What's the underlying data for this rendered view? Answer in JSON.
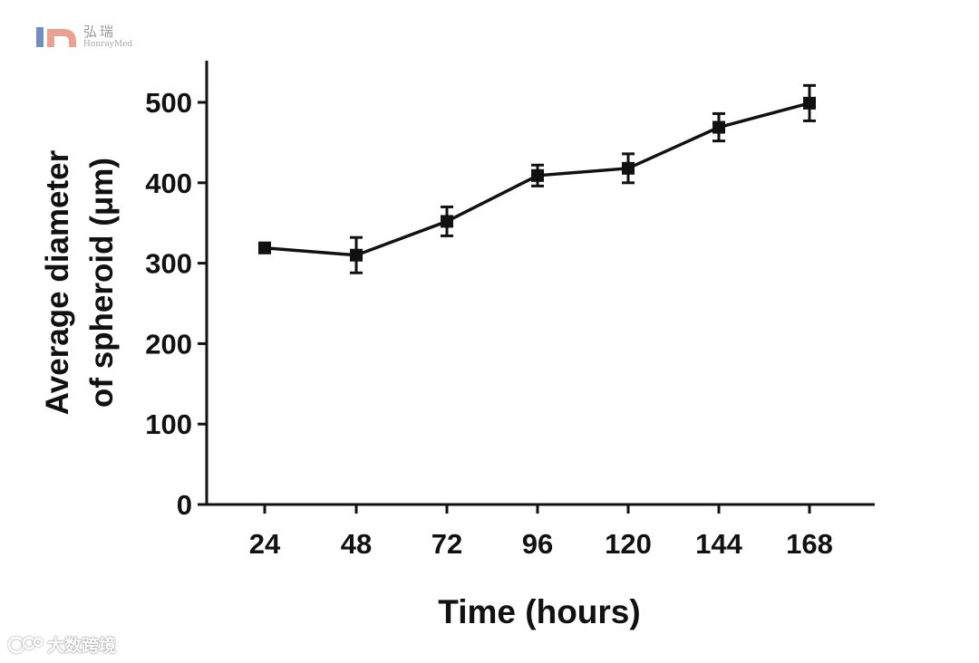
{
  "watermark_top": {
    "brand_cn": "弘瑞",
    "brand_en": "HonrayMed",
    "colors": [
      "#6f8fc2",
      "#e8a28f"
    ]
  },
  "watermark_bottom": {
    "text": "大数跨境"
  },
  "chart_data": {
    "type": "line",
    "title": "",
    "xlabel": "Time (hours)",
    "ylabel": [
      "Average diameter",
      "of spheroid (μm)"
    ],
    "x": [
      "24",
      "48",
      "72",
      "96",
      "120",
      "144",
      "168"
    ],
    "series": [
      {
        "values": [
          319,
          310,
          352,
          409,
          418,
          469,
          499
        ],
        "errors": [
          6,
          22,
          18,
          13,
          18,
          17,
          22
        ],
        "marker": "square",
        "color": "#111111"
      }
    ],
    "ylim": [
      0,
      550
    ],
    "yticks": [
      0,
      100,
      200,
      300,
      400,
      500
    ],
    "grid": false
  }
}
